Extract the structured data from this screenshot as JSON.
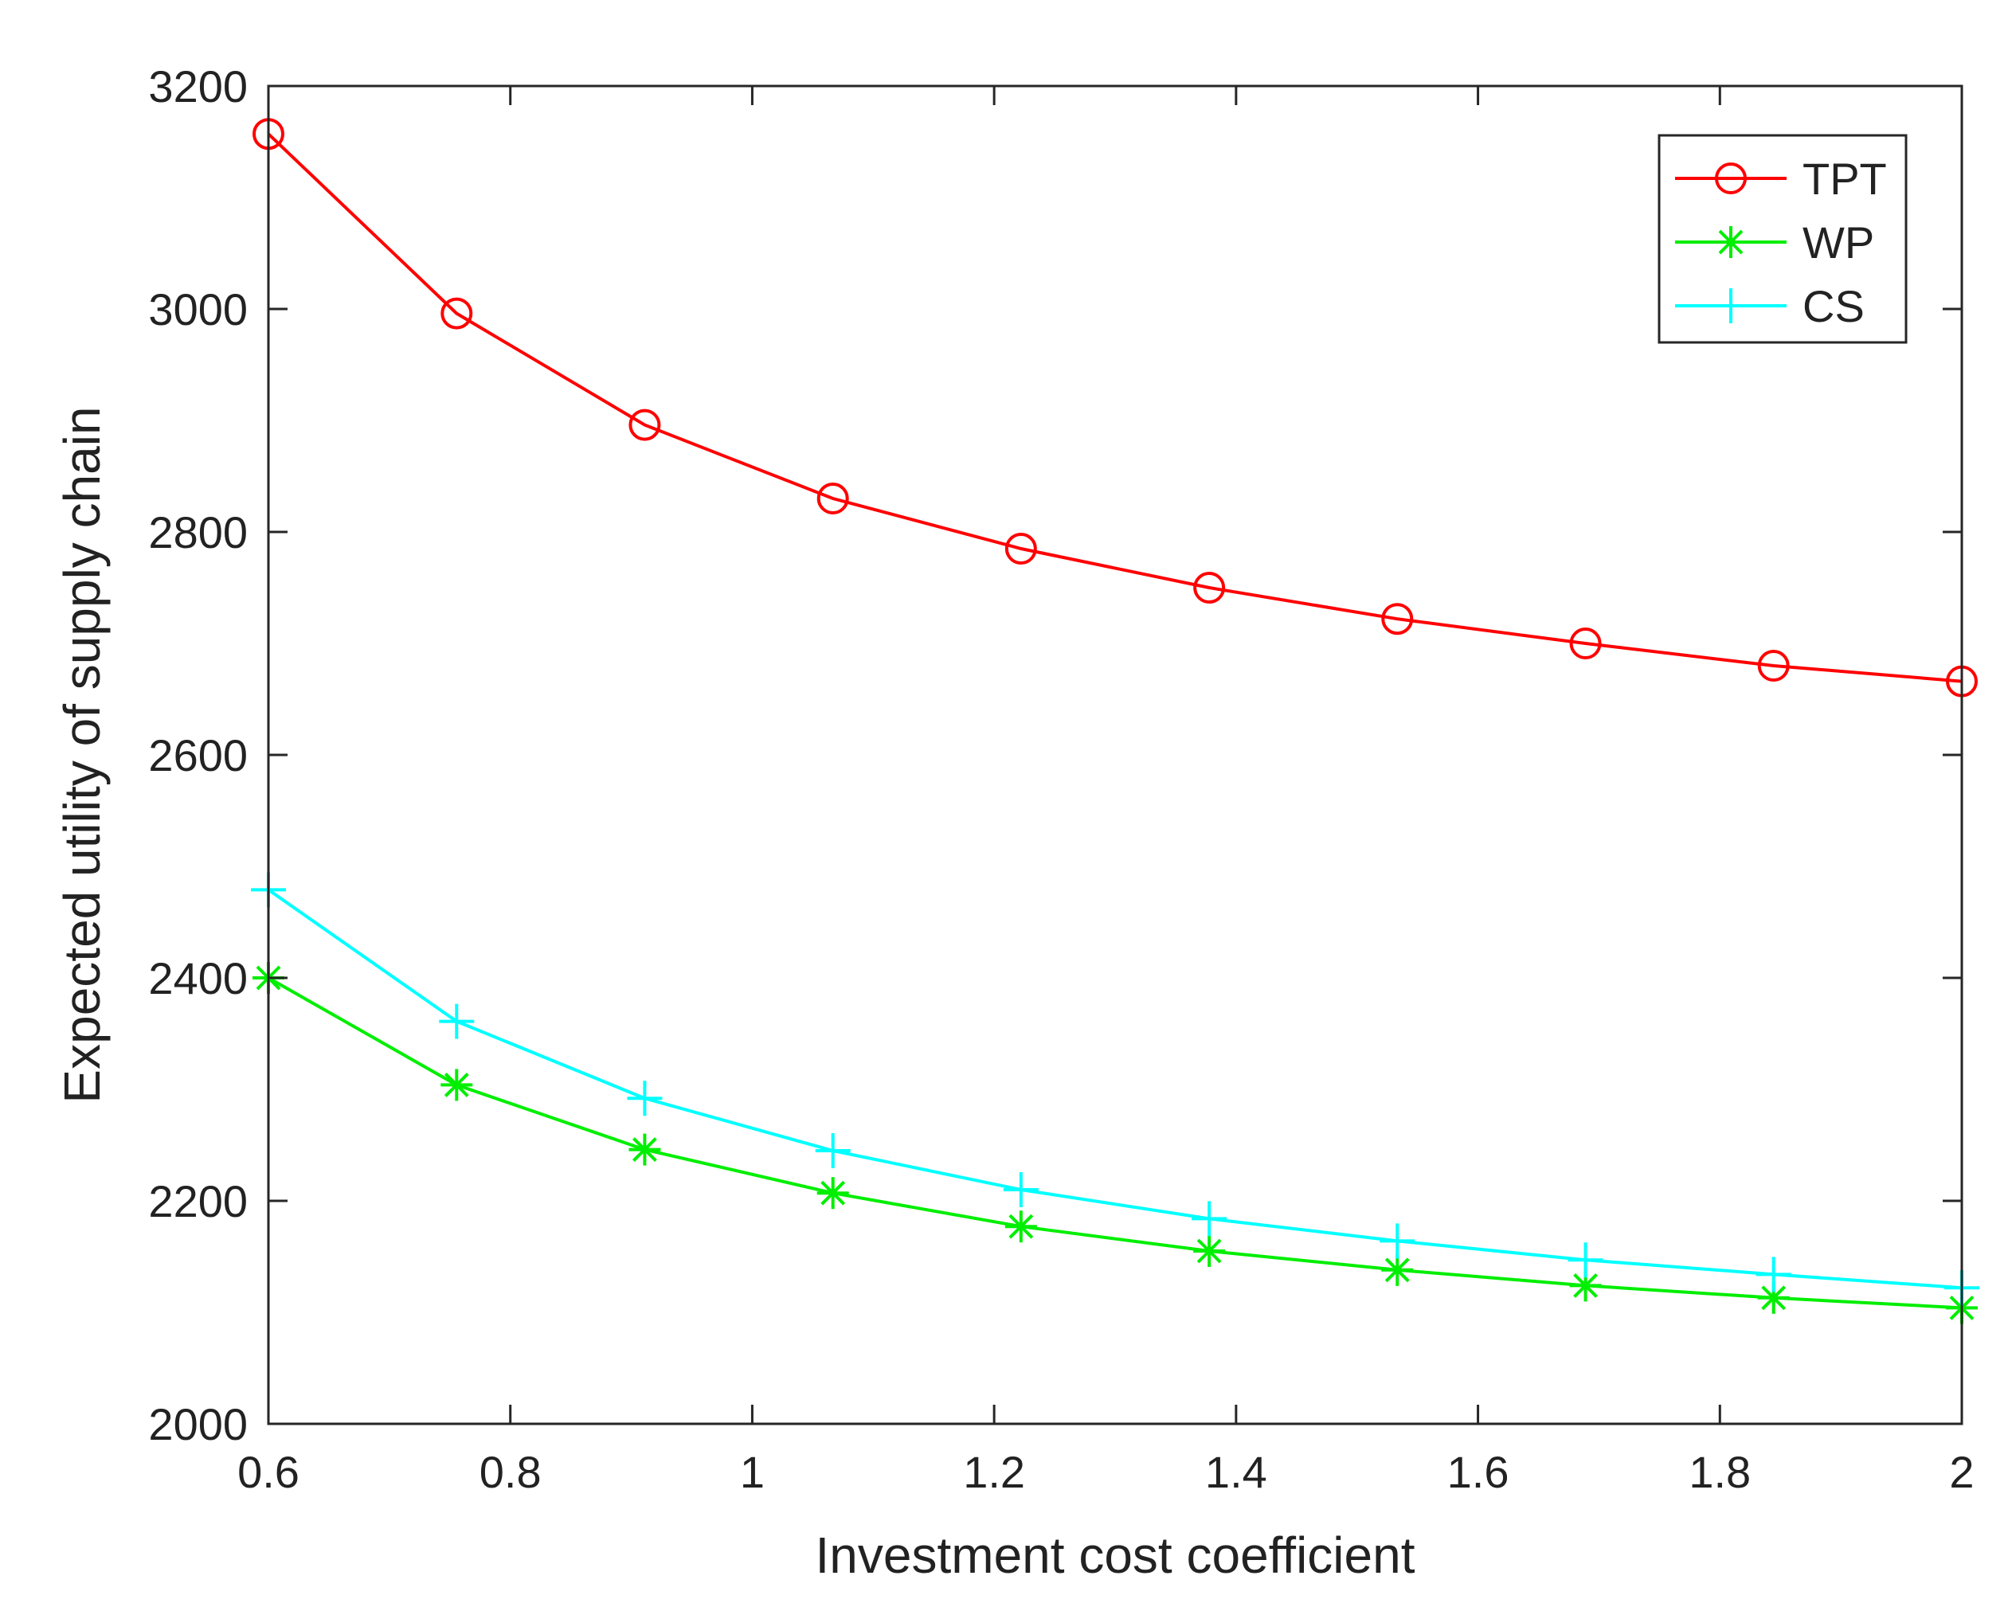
{
  "chart_data": {
    "type": "line",
    "title": "",
    "xlabel": "Investment cost coefficient",
    "ylabel": "Expected utility of supply chain",
    "xlim": [
      0.6,
      2
    ],
    "ylim": [
      2000,
      3200
    ],
    "grid": false,
    "legend_position": "top-right",
    "x": [
      0.6,
      0.7556,
      0.9111,
      1.0667,
      1.2222,
      1.3778,
      1.5333,
      1.6889,
      1.8444,
      2.0
    ],
    "xticks": [
      0.6,
      0.8,
      1,
      1.2,
      1.4,
      1.6,
      1.8,
      2
    ],
    "xtick_labels": [
      "0.6",
      "0.8",
      "1",
      "1.2",
      "1.4",
      "1.6",
      "1.8",
      "2"
    ],
    "yticks": [
      2000,
      2200,
      2400,
      2600,
      2800,
      3000,
      3200
    ],
    "ytick_labels": [
      "2000",
      "2200",
      "2400",
      "2600",
      "2800",
      "3000",
      "3200"
    ],
    "series": [
      {
        "name": "TPT",
        "marker": "circle",
        "color": "#ff0000",
        "values": [
          3157,
          2996,
          2896,
          2830,
          2785,
          2750,
          2722,
          2700,
          2680,
          2666
        ]
      },
      {
        "name": "WP",
        "marker": "asterisk",
        "color": "#00ee00",
        "values": [
          2400,
          2304,
          2246,
          2207,
          2177,
          2155,
          2138,
          2124,
          2113,
          2104
        ]
      },
      {
        "name": "CS",
        "marker": "plus",
        "color": "#00ffff",
        "values": [
          2479,
          2361,
          2292,
          2245,
          2210,
          2184,
          2164,
          2147,
          2134,
          2122
        ]
      }
    ]
  }
}
